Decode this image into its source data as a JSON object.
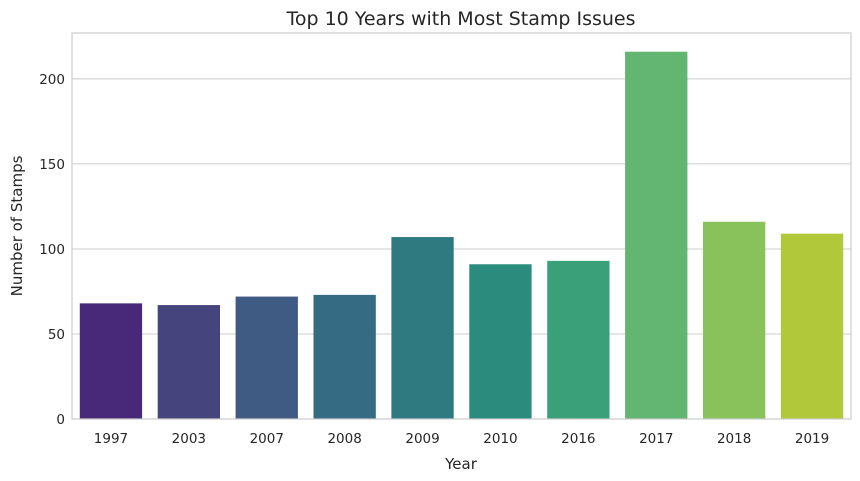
{
  "chart_data": {
    "type": "bar",
    "title": "Top 10 Years with Most Stamp Issues",
    "xlabel": "Year",
    "ylabel": "Number of Stamps",
    "categories": [
      "1997",
      "2003",
      "2007",
      "2008",
      "2009",
      "2010",
      "2016",
      "2017",
      "2018",
      "2019"
    ],
    "values": [
      68,
      67,
      72,
      73,
      107,
      91,
      93,
      216,
      116,
      109
    ],
    "colors": [
      "#482878",
      "#46447c",
      "#3f5a83",
      "#366b84",
      "#2f7a81",
      "#2b8b7c",
      "#3aa07a",
      "#63b671",
      "#89c25a",
      "#b1c83a"
    ],
    "ylim": [
      0,
      227
    ],
    "yticks": [
      0,
      50,
      100,
      150,
      200
    ],
    "grid": "horizontal",
    "legend": "none"
  }
}
